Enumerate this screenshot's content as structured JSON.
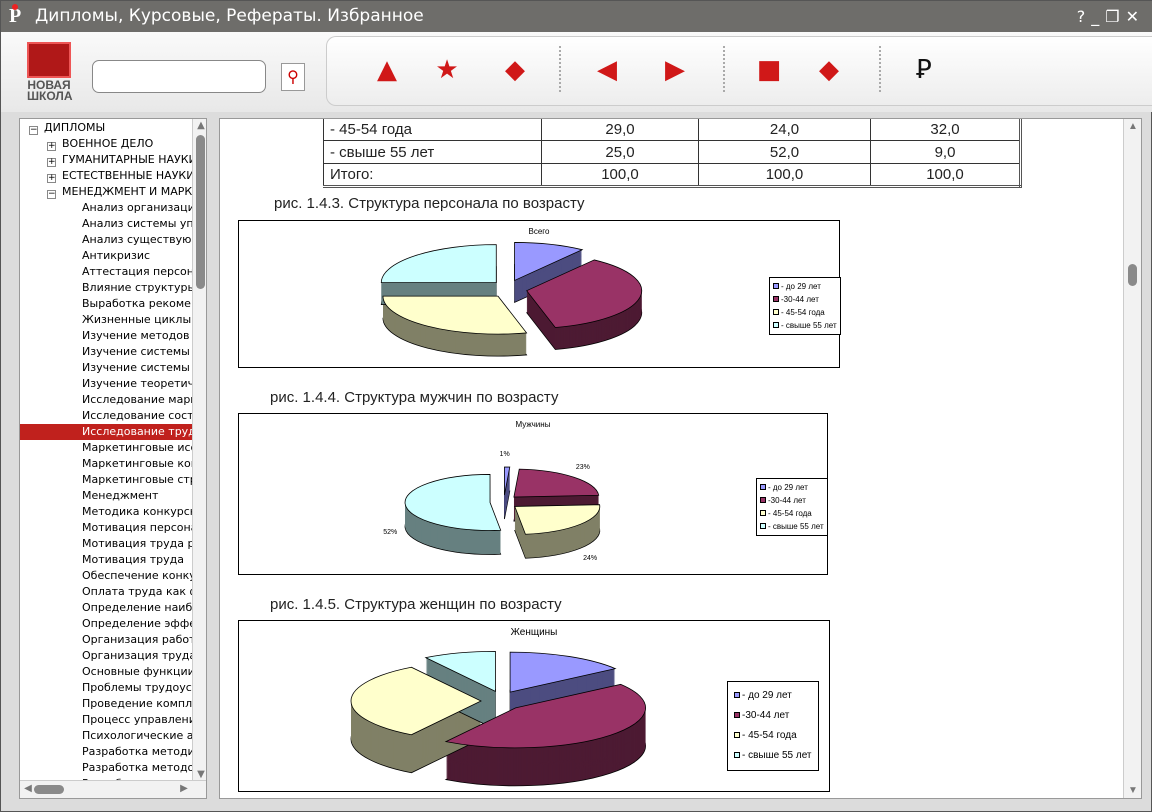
{
  "window": {
    "title": "Дипломы, Курсовые, Рефераты. Избранное",
    "controls": [
      "?",
      "_",
      "❐",
      "✕"
    ]
  },
  "brand": {
    "line1": "НОВАЯ",
    "line2": "ШКОЛА"
  },
  "search": {
    "value": "",
    "placeholder": ""
  },
  "toolbar": [
    {
      "name": "document-a-icon",
      "glyph": "▲"
    },
    {
      "name": "favorites-star-icon",
      "glyph": "★"
    },
    {
      "name": "feed-icon",
      "glyph": "◆"
    },
    {
      "name": "back-icon",
      "glyph": "◀"
    },
    {
      "name": "forward-icon",
      "glyph": "▶"
    },
    {
      "name": "print-icon",
      "glyph": "■"
    },
    {
      "name": "copy-icon",
      "glyph": "◆"
    },
    {
      "name": "app-logo-icon",
      "glyph": "Ꝑ"
    }
  ],
  "tree": {
    "root": "ДИПЛОМЫ",
    "groups": [
      {
        "label": "ВОЕННОЕ ДЕЛО",
        "expanded": false
      },
      {
        "label": "ГУМАНИТАРНЫЕ НАУКИ",
        "expanded": false
      },
      {
        "label": "ЕСТЕСТВЕННЫЕ НАУКИ",
        "expanded": false
      },
      {
        "label": "МЕНЕДЖМЕНТ И МАРКЕТИНГ",
        "expanded": true
      }
    ],
    "items": [
      "Анализ организации и",
      "Анализ системы управ",
      "Анализ существующей",
      "Антикризис",
      "Аттестация персонала",
      "Влияние структуры и",
      "Выработка рекоменд",
      "Жизненные циклы тов",
      "Изучение методов ана",
      "Изучение системы орг",
      "Изучение системы Па",
      "Изучение теоретическ",
      "Исследование маркет",
      "Исследование состоя",
      "Исследование трудов",
      "Маркетинговые иссле",
      "Маркетинговые комм",
      "Маркетинговые страт",
      "Менеджмент",
      "Методика конкурсног",
      "Мотивация персонала",
      "Мотивация труда руко",
      "Мотивация труда",
      "Обеспечение конкуре",
      "Оплата труда как фак",
      "Определение наиболе",
      "Определение эффект",
      "Организация работы",
      "Организация труда пе",
      "Основные функции  м",
      "Проблемы трудоустро",
      "Проведение комплекс",
      "Процесс управления",
      "Психологические асп",
      "Разработка методики",
      "Разработка методоло",
      "Разработка положен"
    ],
    "selected_index": 14
  },
  "document": {
    "table": {
      "rows": [
        [
          "- 45-54 года",
          "29,0",
          "24,0",
          "32,0"
        ],
        [
          "- свыше 55 лет",
          "25,0",
          "52,0",
          "9,0"
        ],
        [
          "Итого:",
          "100,0",
          "100,0",
          "100,0"
        ]
      ]
    },
    "captions": [
      "рис. 1.4.3. Структура персонала по возрасту",
      "рис. 1.4.4. Структура мужчин по возрасту",
      "рис. 1.4.5. Структура женщин  по возрасту"
    ]
  },
  "colors": {
    "blue": "#9999ff",
    "maroon": "#993366",
    "yellow": "#ffffcc",
    "cyan": "#ccffff",
    "selection": "#c0211d"
  },
  "chart_data": [
    {
      "type": "pie",
      "title": "Всего",
      "categories": [
        "- до 29 лет",
        "-30-44 лет",
        "- 45-54 года",
        "- свыше 55 лет"
      ],
      "values": [
        10,
        36,
        29,
        25
      ],
      "data_labels": [],
      "legend": "right"
    },
    {
      "type": "pie",
      "title": "Мужчины",
      "categories": [
        "- до 29 лет",
        "-30-44 лет",
        "- 45-54 года",
        "- свыше 55 лет"
      ],
      "values": [
        1,
        23,
        24,
        52
      ],
      "data_labels": [
        "1%",
        "23%",
        "24%",
        "52%"
      ],
      "legend": "right"
    },
    {
      "type": "pie",
      "title": "Женщины",
      "categories": [
        "- до 29 лет",
        "-30-44 лет",
        "- 45-54 года",
        "- свыше 55 лет"
      ],
      "values": [
        15,
        44,
        32,
        9
      ],
      "data_labels": [],
      "legend": "right"
    }
  ]
}
